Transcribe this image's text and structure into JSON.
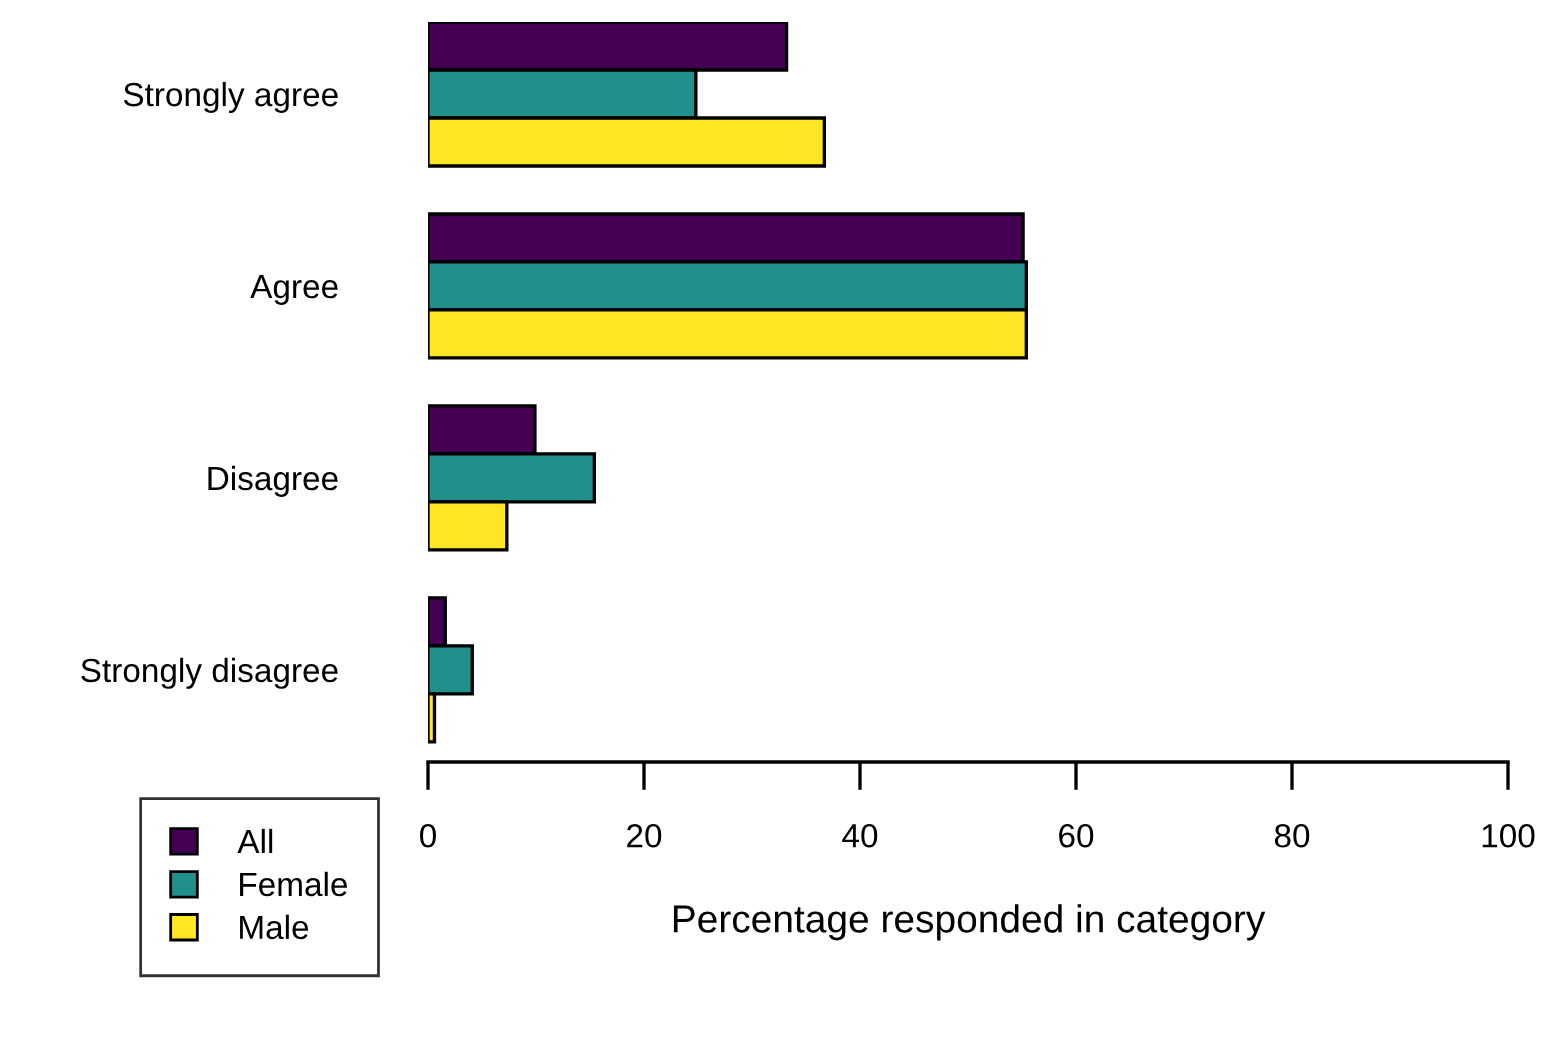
{
  "chart_data": {
    "type": "bar",
    "orientation": "horizontal",
    "categories": [
      "Strongly agree",
      "Agree",
      "Disagree",
      "Strongly disagree"
    ],
    "series": [
      {
        "name": "All",
        "color": "#440154",
        "values": [
          33.2,
          55.1,
          9.9,
          1.6
        ]
      },
      {
        "name": "Female",
        "color": "#21908c",
        "values": [
          24.8,
          55.4,
          15.4,
          4.1
        ]
      },
      {
        "name": "Male",
        "color": "#fde725",
        "values": [
          36.7,
          55.4,
          7.3,
          0.6
        ]
      }
    ],
    "xlabel": "Percentage responded in category",
    "xlim": [
      0,
      100
    ],
    "xticks": [
      0,
      20,
      40,
      60,
      80,
      100
    ],
    "grid": false,
    "legend": "bottom left"
  }
}
